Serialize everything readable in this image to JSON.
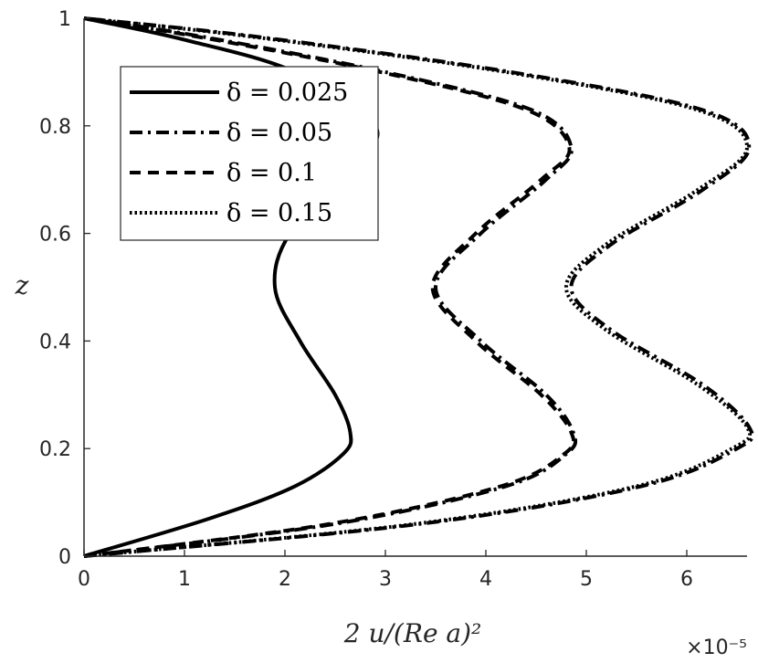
{
  "chart_data": {
    "type": "line",
    "xlabel": "2 u/(Re a)²",
    "ylabel": "z",
    "x_multiplier_label": "×10⁻⁵",
    "xlim": [
      0,
      6.6
    ],
    "ylim": [
      0,
      1
    ],
    "xticks": [
      "0",
      "1",
      "2",
      "3",
      "4",
      "5",
      "6"
    ],
    "yticks": [
      "0",
      "0.2",
      "0.4",
      "0.6",
      "0.8",
      "1"
    ],
    "grid": false,
    "legend_position": "top-left",
    "series": [
      {
        "name": "δ = 0.025",
        "line_style": "solid",
        "points": [
          [
            0,
            0
          ],
          [
            1.25,
            0.07
          ],
          [
            2.1,
            0.13
          ],
          [
            2.58,
            0.19
          ],
          [
            2.65,
            0.23
          ],
          [
            2.5,
            0.3
          ],
          [
            2.15,
            0.4
          ],
          [
            1.9,
            0.5
          ],
          [
            2.05,
            0.6
          ],
          [
            2.65,
            0.72
          ],
          [
            2.9,
            0.8
          ],
          [
            2.1,
            0.9
          ],
          [
            1.0,
            0.96
          ],
          [
            0,
            1
          ]
        ]
      },
      {
        "name": "δ = 0.05",
        "line_style": "dashdot",
        "points": [
          [
            0,
            0
          ],
          [
            2.5,
            0.06
          ],
          [
            4.2,
            0.13
          ],
          [
            4.8,
            0.19
          ],
          [
            4.87,
            0.23
          ],
          [
            4.6,
            0.3
          ],
          [
            3.95,
            0.4
          ],
          [
            3.5,
            0.5
          ],
          [
            3.95,
            0.6
          ],
          [
            4.6,
            0.7
          ],
          [
            4.85,
            0.76
          ],
          [
            4.45,
            0.83
          ],
          [
            3.0,
            0.9
          ],
          [
            1.2,
            0.965
          ],
          [
            0,
            1
          ]
        ]
      },
      {
        "name": "δ = 0.1",
        "line_style": "dashed",
        "points": [
          [
            0,
            0
          ],
          [
            2.45,
            0.06
          ],
          [
            4.15,
            0.13
          ],
          [
            4.78,
            0.19
          ],
          [
            4.85,
            0.23
          ],
          [
            4.55,
            0.3
          ],
          [
            3.9,
            0.4
          ],
          [
            3.47,
            0.5
          ],
          [
            3.9,
            0.6
          ],
          [
            4.55,
            0.7
          ],
          [
            4.83,
            0.76
          ],
          [
            4.4,
            0.83
          ],
          [
            2.95,
            0.9
          ],
          [
            1.15,
            0.965
          ],
          [
            0,
            1
          ]
        ]
      },
      {
        "name": "δ = 0.15",
        "line_style": "dotted",
        "points": [
          [
            0,
            0
          ],
          [
            3.3,
            0.06
          ],
          [
            5.5,
            0.13
          ],
          [
            6.45,
            0.2
          ],
          [
            6.6,
            0.24
          ],
          [
            6.1,
            0.32
          ],
          [
            5.2,
            0.42
          ],
          [
            4.8,
            0.5
          ],
          [
            5.2,
            0.58
          ],
          [
            6.1,
            0.68
          ],
          [
            6.6,
            0.76
          ],
          [
            6.1,
            0.83
          ],
          [
            4.2,
            0.9
          ],
          [
            1.7,
            0.965
          ],
          [
            0,
            1
          ]
        ]
      },
      {
        "name": "",
        "line_style": "dashdot",
        "points": [
          [
            0,
            0
          ],
          [
            3.35,
            0.06
          ],
          [
            5.55,
            0.13
          ],
          [
            6.5,
            0.2
          ],
          [
            6.62,
            0.24
          ],
          [
            6.15,
            0.32
          ],
          [
            5.25,
            0.42
          ],
          [
            4.85,
            0.5
          ],
          [
            5.25,
            0.58
          ],
          [
            6.15,
            0.68
          ],
          [
            6.62,
            0.76
          ],
          [
            6.15,
            0.83
          ],
          [
            4.25,
            0.9
          ],
          [
            1.75,
            0.965
          ],
          [
            0,
            1
          ]
        ]
      }
    ]
  }
}
